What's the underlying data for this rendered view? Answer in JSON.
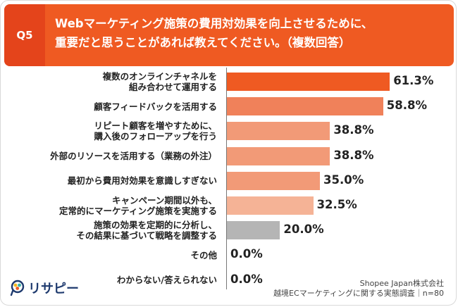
{
  "header": {
    "qnum": "Q5",
    "question": "Webマーケティング施策の費用対効果を向上させるために、\n重要だと思うことがあれば教えてください。（複数回答）"
  },
  "colors": {
    "header_bg": "#ef5a22",
    "header_q_bg": "#e4441b",
    "bar_top": "#ef5a22",
    "bar_high": "#f0815a",
    "bar_mid": "#f29a77",
    "bar_low": "#f5b396",
    "bar_gray": "#b5b5b5"
  },
  "chart_data": {
    "type": "bar",
    "orientation": "horizontal",
    "categories": [
      "複数のオンラインチャネルを\n組み合わせて運用する",
      "顧客フィードバックを活用する",
      "リピート顧客を増やすために、\n購入後のフォローアップを行う",
      "外部のリソースを活用する（業務の外注）",
      "最初から費用対効果を意識しすぎない",
      "キャンペーン期間以外も、\n定常的にマーケティング施策を実施する",
      "施策の効果を定期的に分析し、\nその結果に基づいて戦略を調整する",
      "その他",
      "わからない/答えられない"
    ],
    "values": [
      61.3,
      58.8,
      38.8,
      38.8,
      35.0,
      32.5,
      20.0,
      0.0,
      0.0
    ],
    "value_labels": [
      "61.3%",
      "58.8%",
      "38.8%",
      "38.8%",
      "35.0%",
      "32.5%",
      "20.0%",
      "0.0%",
      "0.0%"
    ],
    "bar_colors": [
      "#ef5a22",
      "#f0815a",
      "#f29a77",
      "#f29a77",
      "#f29a77",
      "#f5b396",
      "#b5b5b5",
      "#b5b5b5",
      "#b5b5b5"
    ],
    "xlim": [
      0,
      70
    ],
    "grid": false,
    "legend": "none"
  },
  "logo": {
    "text": "リサピー"
  },
  "source": {
    "line1": "Shopee Japan株式会社",
    "line2": "越境ECマーケティングに関する実態調査｜n=80"
  }
}
